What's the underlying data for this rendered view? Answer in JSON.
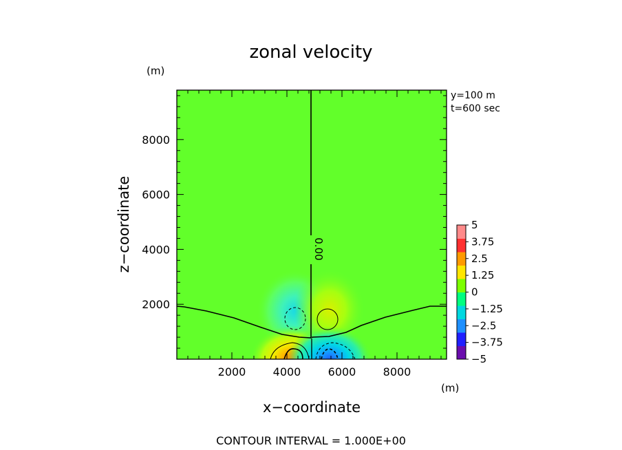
{
  "chart_data": {
    "type": "heatmap",
    "title": "zonal velocity",
    "xlabel": "x−coordinate",
    "ylabel": "z−coordinate",
    "x_unit": "(m)",
    "y_unit": "(m)",
    "xlim": [
      0,
      9800
    ],
    "ylim": [
      0,
      9800
    ],
    "x_ticks": [
      2000,
      4000,
      6000,
      8000
    ],
    "x_tick_labels": [
      "2000",
      "4000",
      "6000",
      "8000"
    ],
    "y_ticks": [
      2000,
      4000,
      6000,
      8000
    ],
    "y_tick_labels": [
      "2000",
      "4000",
      "6000",
      "8000"
    ],
    "annotations": [
      "y=100 m",
      "t=600 sec"
    ],
    "contour_label": "0.00",
    "footer": "CONTOUR INTERVAL = 1.000E+00",
    "colorbar": {
      "min": -5,
      "max": 5,
      "tick_labels": [
        "5",
        "3.75",
        "2.5",
        "1.25",
        "0",
        "−1.25",
        "−2.5",
        "−3.75",
        "−5"
      ],
      "colors": [
        "#6a0dad",
        "#2020ff",
        "#1e90ff",
        "#00d8e0",
        "#00ff80",
        "#7cff00",
        "#ffe600",
        "#ff9a00",
        "#ff3030",
        "#ff8a8a"
      ]
    },
    "background_value": 0.5,
    "features": [
      {
        "kind": "negative-cell",
        "x": 4400,
        "z": 1500,
        "value": -1.5
      },
      {
        "kind": "positive-cell",
        "x": 5600,
        "z": 1550,
        "value": 1.3
      },
      {
        "kind": "positive-cell",
        "x": 4400,
        "z": 200,
        "value": 2.7
      },
      {
        "kind": "negative-cell",
        "x": 5600,
        "z": 150,
        "value": -2.7
      }
    ],
    "zero_contour": [
      {
        "x": 0,
        "z": 2000
      },
      {
        "x": 800,
        "z": 1850
      },
      {
        "x": 2000,
        "z": 1650
      },
      {
        "x": 3000,
        "z": 1300
      },
      {
        "x": 3800,
        "z": 1000
      },
      {
        "x": 4500,
        "z": 850
      },
      {
        "x": 4900,
        "z": 830
      },
      {
        "x": 4900,
        "z": 9800
      }
    ]
  }
}
